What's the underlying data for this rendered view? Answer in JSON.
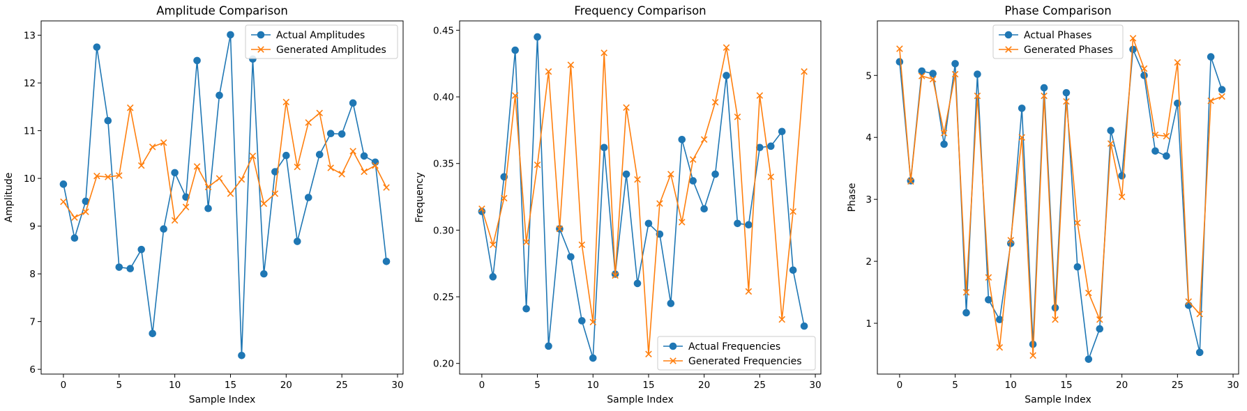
{
  "colors": {
    "actual": "#1f77b4",
    "generated": "#ff7f0e"
  },
  "chart_data": [
    {
      "type": "line",
      "title": "Amplitude Comparison",
      "xlabel": "Sample Index",
      "ylabel": "Amplitude",
      "xlim": [
        -2,
        30.5
      ],
      "ylim": [
        5.9,
        13.3
      ],
      "xticks": [
        0,
        5,
        10,
        15,
        20,
        25,
        30
      ],
      "yticks": [
        6,
        7,
        8,
        9,
        10,
        11,
        12,
        13
      ],
      "legend": "top-right",
      "x": [
        0,
        1,
        2,
        3,
        4,
        5,
        6,
        7,
        8,
        9,
        10,
        11,
        12,
        13,
        14,
        15,
        16,
        17,
        18,
        19,
        20,
        21,
        22,
        23,
        24,
        25,
        26,
        27,
        28,
        29
      ],
      "series": [
        {
          "name": "Actual Amplitudes",
          "marker": "circle",
          "color": "#1f77b4",
          "values": [
            9.88,
            8.75,
            9.52,
            12.75,
            11.21,
            8.14,
            8.11,
            8.51,
            6.75,
            8.94,
            10.12,
            9.61,
            12.47,
            9.37,
            11.74,
            13.01,
            6.29,
            12.5,
            8.0,
            10.14,
            10.48,
            8.68,
            9.6,
            10.5,
            10.94,
            10.93,
            11.58,
            10.47,
            10.34,
            8.26
          ]
        },
        {
          "name": "Generated Amplitudes",
          "marker": "x",
          "color": "#ff7f0e",
          "values": [
            9.51,
            9.18,
            9.3,
            10.05,
            10.03,
            10.06,
            11.48,
            10.27,
            10.66,
            10.75,
            9.12,
            9.4,
            10.25,
            9.82,
            10.0,
            9.68,
            9.98,
            10.47,
            9.47,
            9.68,
            11.6,
            10.24,
            11.17,
            11.37,
            10.22,
            10.09,
            10.57,
            10.14,
            10.27,
            9.81
          ]
        }
      ]
    },
    {
      "type": "line",
      "title": "Frequency Comparison",
      "xlabel": "Sample Index",
      "ylabel": "Frequency",
      "xlim": [
        -2,
        30.5
      ],
      "ylim": [
        0.192,
        0.457
      ],
      "xticks": [
        0,
        5,
        10,
        15,
        20,
        25,
        30
      ],
      "yticks": [
        0.2,
        0.25,
        0.3,
        0.35,
        0.4,
        0.45
      ],
      "ytick_labels": [
        "0.20",
        "0.25",
        "0.30",
        "0.35",
        "0.40",
        "0.45"
      ],
      "legend": "bottom-right",
      "x": [
        0,
        1,
        2,
        3,
        4,
        5,
        6,
        7,
        8,
        9,
        10,
        11,
        12,
        13,
        14,
        15,
        16,
        17,
        18,
        19,
        20,
        21,
        22,
        23,
        24,
        25,
        26,
        27,
        28,
        29
      ],
      "series": [
        {
          "name": "Actual Frequencies",
          "marker": "circle",
          "color": "#1f77b4",
          "values": [
            0.314,
            0.265,
            0.34,
            0.435,
            0.241,
            0.445,
            0.213,
            0.301,
            0.28,
            0.232,
            0.204,
            0.362,
            0.267,
            0.342,
            0.26,
            0.305,
            0.297,
            0.245,
            0.368,
            0.337,
            0.316,
            0.342,
            0.416,
            0.305,
            0.304,
            0.362,
            0.363,
            0.374,
            0.27,
            0.228
          ]
        },
        {
          "name": "Generated Frequencies",
          "marker": "x",
          "color": "#ff7f0e",
          "values": [
            0.316,
            0.289,
            0.324,
            0.401,
            0.291,
            0.349,
            0.419,
            0.301,
            0.424,
            0.289,
            0.231,
            0.433,
            0.266,
            0.392,
            0.338,
            0.207,
            0.32,
            0.342,
            0.306,
            0.353,
            0.368,
            0.396,
            0.437,
            0.385,
            0.254,
            0.401,
            0.34,
            0.233,
            0.314,
            0.419
          ]
        }
      ]
    },
    {
      "type": "line",
      "title": "Phase Comparison",
      "xlabel": "Sample Index",
      "ylabel": "Phase",
      "xlim": [
        -2,
        30.5
      ],
      "ylim": [
        0.18,
        5.88
      ],
      "xticks": [
        0,
        5,
        10,
        15,
        20,
        25,
        30
      ],
      "yticks": [
        1,
        2,
        3,
        4,
        5
      ],
      "legend": "top-center",
      "x": [
        0,
        1,
        2,
        3,
        4,
        5,
        6,
        7,
        8,
        9,
        10,
        11,
        12,
        13,
        14,
        15,
        16,
        17,
        18,
        19,
        20,
        21,
        22,
        23,
        24,
        25,
        26,
        27,
        28,
        29
      ],
      "series": [
        {
          "name": "Actual Phases",
          "marker": "circle",
          "color": "#1f77b4",
          "values": [
            5.22,
            3.3,
            5.07,
            5.03,
            3.89,
            5.19,
            1.17,
            5.02,
            1.38,
            1.06,
            2.29,
            4.47,
            0.66,
            4.8,
            1.25,
            4.72,
            1.91,
            0.42,
            0.91,
            4.11,
            3.38,
            5.42,
            5.0,
            3.78,
            3.7,
            4.55,
            1.29,
            0.53,
            5.3,
            4.77
          ]
        },
        {
          "name": "Generated Phases",
          "marker": "x",
          "color": "#ff7f0e",
          "values": [
            5.43,
            3.29,
            4.99,
            4.94,
            4.07,
            5.02,
            1.5,
            4.67,
            1.74,
            0.61,
            2.34,
            4.0,
            0.48,
            4.67,
            1.06,
            4.58,
            2.62,
            1.49,
            1.06,
            3.9,
            3.04,
            5.6,
            5.11,
            4.04,
            4.02,
            5.21,
            1.35,
            1.15,
            4.59,
            4.66
          ]
        }
      ]
    }
  ]
}
